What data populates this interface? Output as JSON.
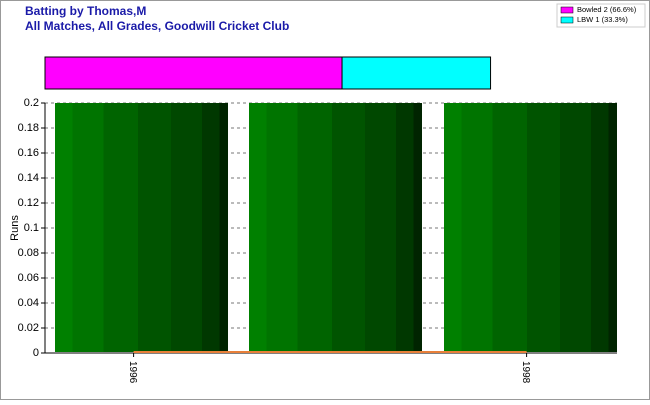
{
  "chart_data": [
    {
      "type": "stacked-bar",
      "xlim": [
        0,
        100
      ],
      "series": [
        {
          "name": "Bowled 2 (66.6%)",
          "color": "#ff00ff",
          "values": [
            66.6
          ]
        },
        {
          "name": "LBW 1 (33.3%)",
          "color": "#00ffff",
          "values": [
            33.3
          ]
        }
      ]
    },
    {
      "type": "line",
      "title": "Batting by Thomas,M",
      "subtitle": "All Matches, All Grades, Goodwill Cricket Club",
      "y_label": "Runs",
      "x": [
        1996,
        1998
      ],
      "values": [
        0,
        0
      ],
      "color": "#e8803a",
      "xlim": [
        1995.6,
        1998.46
      ],
      "xticks": [
        1996,
        1998
      ],
      "ylim": [
        0,
        0.2
      ],
      "yticks": [
        0,
        0.02,
        0.04,
        0.06,
        0.08,
        0.1,
        0.12,
        0.14,
        0.16,
        0.18,
        0.2
      ],
      "grid": true
    }
  ]
}
